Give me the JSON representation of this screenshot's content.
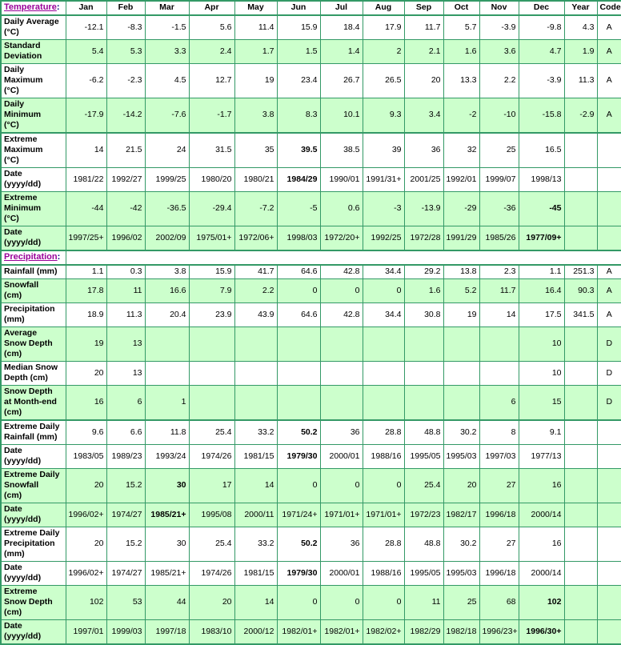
{
  "colors": {
    "border_green": "#339966",
    "row_green": "#CCFFCC",
    "header_pale_green": "#E6FFE6",
    "label_blue": "#0000CC",
    "section_link_purple": "#990099",
    "value_black": "#000000"
  },
  "columns": [
    "Jan",
    "Feb",
    "Mar",
    "Apr",
    "May",
    "Jun",
    "Jul",
    "Aug",
    "Sep",
    "Oct",
    "Nov",
    "Dec",
    "Year",
    "Code"
  ],
  "temperature_section": {
    "label": "Temperature",
    "colon": ":",
    "rows": [
      {
        "label": "Daily Average\n(°C)",
        "shade": "white",
        "thick_top": true,
        "bold": [],
        "cells": [
          "-12.1",
          "-8.3",
          "-1.5",
          "5.6",
          "11.4",
          "15.9",
          "18.4",
          "17.9",
          "11.7",
          "5.7",
          "-3.9",
          "-9.8",
          "4.3",
          "A"
        ]
      },
      {
        "label": "Standard\nDeviation",
        "shade": "green",
        "thick_top": false,
        "bold": [],
        "cells": [
          "5.4",
          "5.3",
          "3.3",
          "2.4",
          "1.7",
          "1.5",
          "1.4",
          "2",
          "2.1",
          "1.6",
          "3.6",
          "4.7",
          "1.9",
          "A"
        ]
      },
      {
        "label": "Daily\nMaximum\n(°C)",
        "shade": "white",
        "thick_top": false,
        "bold": [],
        "cells": [
          "-6.2",
          "-2.3",
          "4.5",
          "12.7",
          "19",
          "23.4",
          "26.7",
          "26.5",
          "20",
          "13.3",
          "2.2",
          "-3.9",
          "11.3",
          "A"
        ]
      },
      {
        "label": "Daily\nMinimum\n(°C)",
        "shade": "green",
        "thick_top": false,
        "bold": [],
        "cells": [
          "-17.9",
          "-14.2",
          "-7.6",
          "-1.7",
          "3.8",
          "8.3",
          "10.1",
          "9.3",
          "3.4",
          "-2",
          "-10",
          "-15.8",
          "-2.9",
          "A"
        ]
      },
      {
        "label": "Extreme\nMaximum\n(°C)",
        "shade": "white",
        "thick_top": true,
        "bold": [
          5
        ],
        "cells": [
          "14",
          "21.5",
          "24",
          "31.5",
          "35",
          "39.5",
          "38.5",
          "39",
          "36",
          "32",
          "25",
          "16.5",
          "",
          ""
        ]
      },
      {
        "label": "Date\n(yyyy/dd)",
        "shade": "white",
        "thick_top": false,
        "bold": [
          5
        ],
        "cells": [
          "1981/22",
          "1992/27",
          "1999/25",
          "1980/20",
          "1980/21",
          "1984/29",
          "1990/01",
          "1991/31+",
          "2001/25",
          "1992/01",
          "1999/07",
          "1998/13",
          "",
          ""
        ]
      },
      {
        "label": "Extreme\nMinimum\n(°C)",
        "shade": "green",
        "thick_top": false,
        "bold": [
          11
        ],
        "cells": [
          "-44",
          "-42",
          "-36.5",
          "-29.4",
          "-7.2",
          "-5",
          "0.6",
          "-3",
          "-13.9",
          "-29",
          "-36",
          "-45",
          "",
          ""
        ]
      },
      {
        "label": "Date\n(yyyy/dd)",
        "shade": "green",
        "thick_top": false,
        "bold": [
          11
        ],
        "cells": [
          "1997/25+",
          "1996/02",
          "2002/09",
          "1975/01+",
          "1972/06+",
          "1998/03",
          "1972/20+",
          "1992/25",
          "1972/28",
          "1991/29",
          "1985/26",
          "1977/09+",
          "",
          ""
        ]
      }
    ]
  },
  "precipitation_section": {
    "label": "Precipitation",
    "colon": ":",
    "rows": [
      {
        "label": "Rainfall (mm)",
        "shade": "white",
        "thick_top": true,
        "bold": [],
        "cells": [
          "1.1",
          "0.3",
          "3.8",
          "15.9",
          "41.7",
          "64.6",
          "42.8",
          "34.4",
          "29.2",
          "13.8",
          "2.3",
          "1.1",
          "251.3",
          "A"
        ]
      },
      {
        "label": "Snowfall\n(cm)",
        "shade": "green",
        "thick_top": false,
        "bold": [],
        "cells": [
          "17.8",
          "11",
          "16.6",
          "7.9",
          "2.2",
          "0",
          "0",
          "0",
          "1.6",
          "5.2",
          "11.7",
          "16.4",
          "90.3",
          "A"
        ]
      },
      {
        "label": "Precipitation\n(mm)",
        "shade": "white",
        "thick_top": false,
        "bold": [],
        "cells": [
          "18.9",
          "11.3",
          "20.4",
          "23.9",
          "43.9",
          "64.6",
          "42.8",
          "34.4",
          "30.8",
          "19",
          "14",
          "17.5",
          "341.5",
          "A"
        ]
      },
      {
        "label": "Average\nSnow Depth\n(cm)",
        "shade": "green",
        "thick_top": false,
        "bold": [],
        "cells": [
          "19",
          "13",
          "",
          "",
          "",
          "",
          "",
          "",
          "",
          "",
          "",
          "10",
          "",
          "D"
        ]
      },
      {
        "label": "Median Snow\nDepth (cm)",
        "shade": "white",
        "thick_top": false,
        "bold": [],
        "cells": [
          "20",
          "13",
          "",
          "",
          "",
          "",
          "",
          "",
          "",
          "",
          "",
          "10",
          "",
          "D"
        ]
      },
      {
        "label": "Snow Depth\nat Month-end\n(cm)",
        "shade": "green",
        "thick_top": false,
        "bold": [],
        "cells": [
          "16",
          "6",
          "1",
          "",
          "",
          "",
          "",
          "",
          "",
          "",
          "6",
          "15",
          "",
          "D"
        ]
      },
      {
        "label": "Extreme Daily\nRainfall (mm)",
        "shade": "white",
        "thick_top": true,
        "bold": [
          5
        ],
        "cells": [
          "9.6",
          "6.6",
          "11.8",
          "25.4",
          "33.2",
          "50.2",
          "36",
          "28.8",
          "48.8",
          "30.2",
          "8",
          "9.1",
          "",
          ""
        ]
      },
      {
        "label": "Date\n(yyyy/dd)",
        "shade": "white",
        "thick_top": false,
        "bold": [
          5
        ],
        "cells": [
          "1983/05",
          "1989/23",
          "1993/24",
          "1974/26",
          "1981/15",
          "1979/30",
          "2000/01",
          "1988/16",
          "1995/05",
          "1995/03",
          "1997/03",
          "1977/13",
          "",
          ""
        ]
      },
      {
        "label": "Extreme Daily\nSnowfall\n(cm)",
        "shade": "green",
        "thick_top": false,
        "bold": [
          2
        ],
        "cells": [
          "20",
          "15.2",
          "30",
          "17",
          "14",
          "0",
          "0",
          "0",
          "25.4",
          "20",
          "27",
          "16",
          "",
          ""
        ]
      },
      {
        "label": "Date\n(yyyy/dd)",
        "shade": "green",
        "thick_top": false,
        "bold": [
          2
        ],
        "cells": [
          "1996/02+",
          "1974/27",
          "1985/21+",
          "1995/08",
          "2000/11",
          "1971/24+",
          "1971/01+",
          "1971/01+",
          "1972/23",
          "1982/17",
          "1996/18",
          "2000/14",
          "",
          ""
        ]
      },
      {
        "label": "Extreme Daily\nPrecipitation\n(mm)",
        "shade": "white",
        "thick_top": false,
        "bold": [
          5
        ],
        "cells": [
          "20",
          "15.2",
          "30",
          "25.4",
          "33.2",
          "50.2",
          "36",
          "28.8",
          "48.8",
          "30.2",
          "27",
          "16",
          "",
          ""
        ]
      },
      {
        "label": "Date\n(yyyy/dd)",
        "shade": "white",
        "thick_top": false,
        "bold": [
          5
        ],
        "cells": [
          "1996/02+",
          "1974/27",
          "1985/21+",
          "1974/26",
          "1981/15",
          "1979/30",
          "2000/01",
          "1988/16",
          "1995/05",
          "1995/03",
          "1996/18",
          "2000/14",
          "",
          ""
        ]
      },
      {
        "label": "Extreme\nSnow Depth\n(cm)",
        "shade": "green",
        "thick_top": false,
        "bold": [
          11
        ],
        "cells": [
          "102",
          "53",
          "44",
          "20",
          "14",
          "0",
          "0",
          "0",
          "11",
          "25",
          "68",
          "102",
          "",
          ""
        ]
      },
      {
        "label": "Date\n(yyyy/dd)",
        "shade": "green",
        "thick_top": false,
        "bold": [
          11
        ],
        "cells": [
          "1997/01",
          "1999/03",
          "1997/18",
          "1983/10",
          "2000/12",
          "1982/01+",
          "1982/01+",
          "1982/02+",
          "1982/29",
          "1982/18",
          "1996/23+",
          "1996/30+",
          "",
          ""
        ]
      }
    ]
  }
}
